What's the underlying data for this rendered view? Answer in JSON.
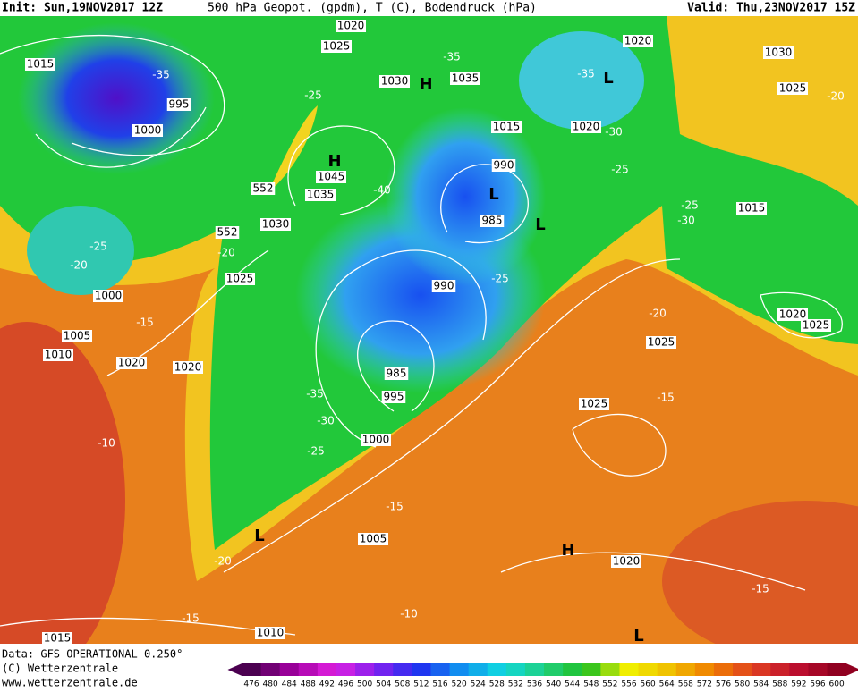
{
  "header": {
    "init": "Init: Sun,19NOV2017 12Z",
    "title": "500 hPa Geopot. (gpdm), T (C), Bodendruck (hPa)",
    "valid": "Valid: Thu,23NOV2017 15Z"
  },
  "map": {
    "labels": [
      "1015",
      "-35",
      "995",
      "1000",
      "1020",
      "1025",
      "1030",
      "H",
      "1035",
      "-35",
      "-25",
      "H",
      "1045",
      "1035",
      "-40",
      "1030",
      "1015",
      "990",
      "L",
      "985",
      "L",
      "1020",
      "1020",
      "-30",
      "-25",
      "L",
      "-35",
      "1030",
      "1025",
      "-20",
      "1015",
      "-25",
      "-30",
      "1020",
      "1025",
      "-20",
      "1025",
      "1025",
      "-15",
      "-25",
      "-20",
      "1000",
      "-20",
      "1025",
      "-15",
      "1005",
      "1010",
      "1020",
      "1020",
      "990",
      "-25",
      "985",
      "995",
      "-35",
      "-30",
      "-25",
      "1000",
      "-10",
      "-15",
      "1005",
      "L",
      "-20",
      "H",
      "1020",
      "-15",
      "-15",
      "-10",
      "1010",
      "1015",
      "L",
      "552",
      "552"
    ]
  },
  "footer": {
    "source": "Data: GFS OPERATIONAL 0.250°",
    "copyright": "(C) Wetterzentrale",
    "url": "www.wetterzentrale.de"
  },
  "legend": {
    "ticks": [
      476,
      480,
      484,
      488,
      492,
      496,
      500,
      504,
      508,
      512,
      516,
      520,
      524,
      528,
      532,
      536,
      540,
      544,
      548,
      552,
      556,
      560,
      564,
      568,
      572,
      576,
      580,
      584,
      588,
      592,
      596,
      600
    ]
  }
}
